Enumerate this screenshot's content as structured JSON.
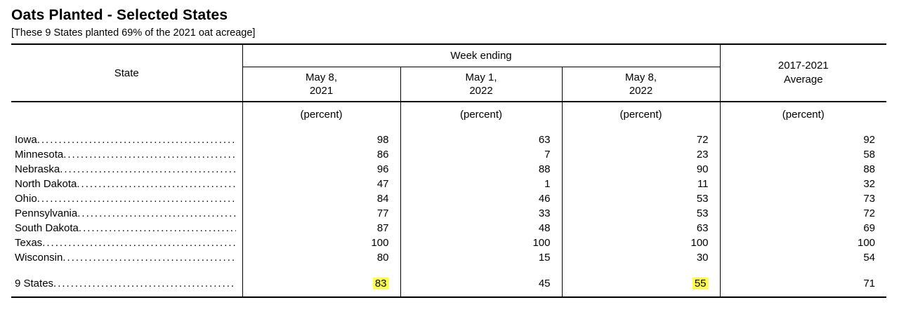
{
  "title": "Oats Planted - Selected States",
  "subtitle": "[These 9 States planted 69% of the 2021 oat acreage]",
  "table": {
    "state_header": "State",
    "week_ending_header": "Week ending",
    "avg_header": "2017-2021\nAverage",
    "date_headers": [
      "May 8,\n2021",
      "May 1,\n2022",
      "May 8,\n2022"
    ],
    "unit_label": "(percent)",
    "highlight_color": "#ffff4d",
    "rows": [
      {
        "state": "Iowa",
        "values": [
          "98",
          "63",
          "72",
          "92"
        ]
      },
      {
        "state": "Minnesota",
        "values": [
          "86",
          "7",
          "23",
          "58"
        ]
      },
      {
        "state": "Nebraska",
        "values": [
          "96",
          "88",
          "90",
          "88"
        ]
      },
      {
        "state": "North Dakota",
        "values": [
          "47",
          "1",
          "11",
          "32"
        ]
      },
      {
        "state": "Ohio",
        "values": [
          "84",
          "46",
          "53",
          "73"
        ]
      },
      {
        "state": "Pennsylvania",
        "values": [
          "77",
          "33",
          "53",
          "72"
        ]
      },
      {
        "state": "South Dakota",
        "values": [
          "87",
          "48",
          "63",
          "69"
        ]
      },
      {
        "state": "Texas",
        "values": [
          "100",
          "100",
          "100",
          "100"
        ]
      },
      {
        "state": "Wisconsin",
        "values": [
          "80",
          "15",
          "30",
          "54"
        ]
      }
    ],
    "total_row": {
      "state": "9 States",
      "values": [
        "83",
        "45",
        "55",
        "71"
      ],
      "highlighted_columns": [
        0,
        2
      ]
    }
  }
}
